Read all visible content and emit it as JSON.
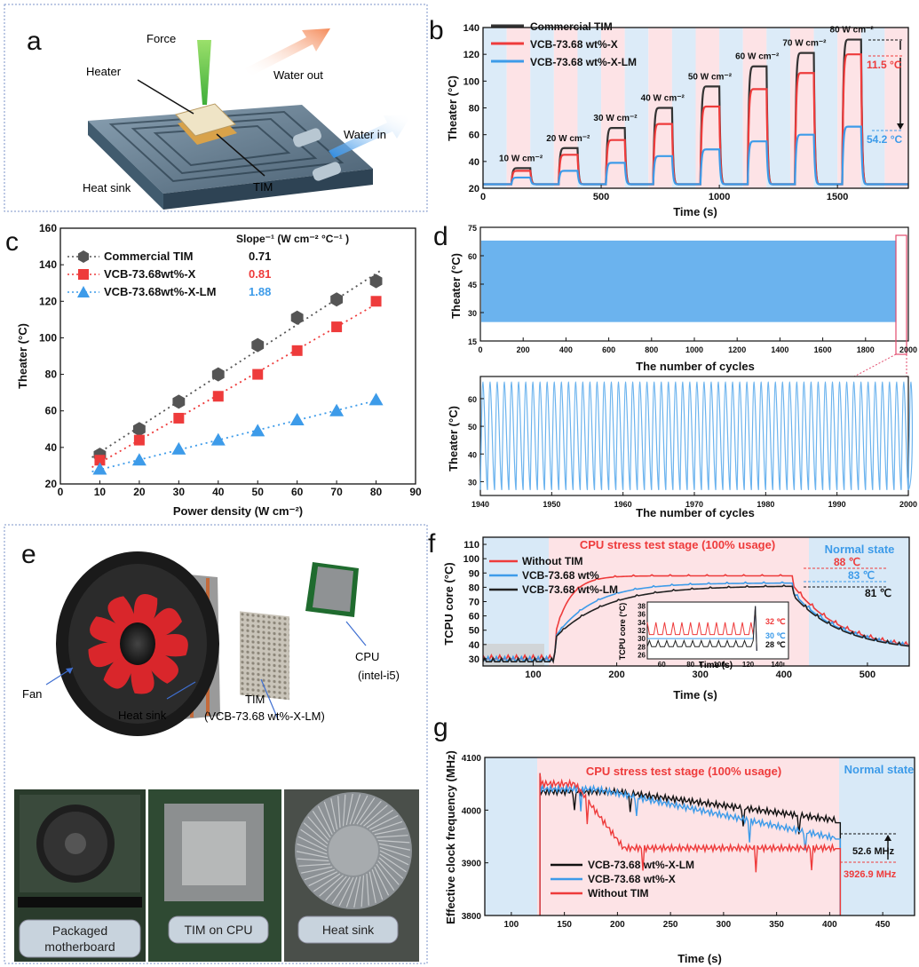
{
  "panels": {
    "a": {
      "letter": "a",
      "labels": {
        "force": "Force",
        "heater": "Heater",
        "water_out": "Water out",
        "water_in": "Water in",
        "heat_sink": "Heat sink",
        "tim": "TIM"
      }
    },
    "e": {
      "letter": "e",
      "labels": {
        "fan": "Fan",
        "heat_sink": "Heat sink",
        "tim": "TIM",
        "tim_sub": "(VCB-73.68 wt%-X-LM)",
        "cpu": "CPU",
        "cpu_sub": "(intel-i5)"
      },
      "photos": {
        "p1_line1": "Packaged",
        "p1_line2": "motherboard",
        "p2": "TIM on CPU",
        "p3": "Heat sink"
      }
    }
  },
  "chart_data": [
    {
      "panel": "b",
      "type": "line",
      "xlabel": "Time (s)",
      "ylabel": "Theater (°C)",
      "xlim": [
        0,
        1800
      ],
      "ylim": [
        20,
        140
      ],
      "xticks": [
        "0",
        "500",
        "1000",
        "1500"
      ],
      "yticks": [
        "20",
        "40",
        "60",
        "80",
        "100",
        "120",
        "140"
      ],
      "power_labels": [
        "10 W cm⁻²",
        "20 W cm⁻²",
        "30 W cm⁻²",
        "40 W cm⁻²",
        "50 W cm⁻²",
        "60 W cm⁻²",
        "70 W cm⁻²",
        "80 W cm⁻²"
      ],
      "annotations": [
        "11.5 °C",
        "54.2 °C"
      ],
      "series": [
        {
          "name": "Commercial TIM",
          "color": "#333333",
          "values": [
            35,
            50,
            65,
            80,
            96,
            111,
            121,
            131
          ]
        },
        {
          "name": "VCB-73.68 wt%-X",
          "color": "#ee3b3b",
          "values": [
            33,
            45,
            56,
            68,
            81,
            94,
            106,
            120
          ]
        },
        {
          "name": "VCB-73.68 wt%-X-LM",
          "color": "#3d9be9",
          "values": [
            28,
            33,
            39,
            44,
            49,
            55,
            60,
            66
          ]
        }
      ]
    },
    {
      "panel": "c",
      "type": "scatter",
      "xlabel": "Power density (W cm⁻²)",
      "ylabel": "Theater (°C)",
      "xlim": [
        0,
        90
      ],
      "ylim": [
        20,
        160
      ],
      "xticks": [
        "0",
        "10",
        "20",
        "30",
        "40",
        "50",
        "60",
        "70",
        "80",
        "90"
      ],
      "yticks": [
        "20",
        "40",
        "60",
        "80",
        "100",
        "120",
        "140",
        "160"
      ],
      "slope_header": "Slope⁻¹ (W cm⁻² °C⁻¹ )",
      "x": [
        10,
        20,
        30,
        40,
        50,
        60,
        70,
        80
      ],
      "series": [
        {
          "name": "Commercial TIM",
          "slope": "0.71",
          "color": "#555555",
          "values": [
            36,
            50,
            65,
            80,
            96,
            111,
            121,
            131
          ]
        },
        {
          "name": "VCB-73.68wt%-X",
          "slope": "0.81",
          "color": "#ee3b3b",
          "values": [
            33,
            44,
            56,
            68,
            80,
            93,
            106,
            120
          ]
        },
        {
          "name": "VCB-73.68wt%-X-LM",
          "slope": "1.88",
          "color": "#3d9be9",
          "values": [
            28,
            33,
            39,
            44,
            49,
            55,
            60,
            66
          ]
        }
      ]
    },
    {
      "panel": "d",
      "type": "area",
      "top": {
        "xlabel": "The number of cycles",
        "ylabel": "Theater (°C)",
        "xlim": [
          0,
          2000
        ],
        "ylim": [
          15,
          75
        ],
        "xticks": [
          "0",
          "200",
          "400",
          "600",
          "800",
          "1000",
          "1200",
          "1400",
          "1600",
          "1800",
          "2000"
        ],
        "yticks": [
          "15",
          "30",
          "45",
          "60",
          "75"
        ],
        "band": [
          25,
          68
        ],
        "color": "#6bb3ee"
      },
      "bottom": {
        "xlabel": "The number of cycles",
        "ylabel": "Theater (°C)",
        "xlim": [
          1940,
          2000
        ],
        "ylim": [
          25,
          68
        ],
        "xticks": [
          "1940",
          "1950",
          "1960",
          "1970",
          "1980",
          "1990",
          "2000"
        ],
        "yticks": [
          "30",
          "40",
          "50",
          "60"
        ],
        "cycle_min": 27,
        "cycle_max": 66,
        "color": "#6bb3ee"
      }
    },
    {
      "panel": "f",
      "type": "line",
      "xlabel": "Time (s)",
      "ylabel": "TCPU core (°C)",
      "xlim": [
        40,
        550
      ],
      "ylim": [
        25,
        115
      ],
      "xticks": [
        "100",
        "200",
        "300",
        "400",
        "500"
      ],
      "yticks": [
        "30",
        "40",
        "50",
        "60",
        "70",
        "80",
        "90",
        "100",
        "110"
      ],
      "stage_label": "CPU stress test stage (100% usage)",
      "normal_label": "Normal state",
      "stage_range": [
        125,
        410
      ],
      "annotations": [
        "88 ℃",
        "83 ℃",
        "81 ℃"
      ],
      "series": [
        {
          "name": "Without TIM",
          "color": "#ee3b3b",
          "plateau": 88
        },
        {
          "name": "VCB-73.68 wt%",
          "color": "#3d9be9",
          "plateau": 83
        },
        {
          "name": "VCB-73.68 wt%-LM",
          "color": "#222222",
          "plateau": 81
        }
      ],
      "inset": {
        "xlabel": "Time (s)",
        "ylabel": "TCPU core (°C)",
        "xticks": [
          "60",
          "80",
          "100",
          "120",
          "140"
        ],
        "yticks": [
          "26",
          "28",
          "30",
          "32",
          "34",
          "36",
          "38"
        ],
        "annotations": [
          "32 ℃",
          "30 ℃",
          "28 ℃"
        ]
      }
    },
    {
      "panel": "g",
      "type": "line",
      "xlabel": "Time (s)",
      "ylabel": "Effective clock frequency (MHz)",
      "xlim": [
        75,
        480
      ],
      "ylim": [
        3800,
        4100
      ],
      "xticks": [
        "100",
        "150",
        "200",
        "250",
        "300",
        "350",
        "400",
        "450"
      ],
      "yticks": [
        "3800",
        "3900",
        "4000",
        "4100"
      ],
      "stage_label": "CPU stress test stage (100% usage)",
      "normal_label": "Normal state",
      "stage_range": [
        127,
        410
      ],
      "annotations": [
        "52.6 MHz",
        "3926.9 MHz"
      ],
      "series": [
        {
          "name": "VCB-73.68 wt%-X-LM",
          "color": "#111111",
          "final": 3976
        },
        {
          "name": "VCB-73.68 wt%-X",
          "color": "#3d9be9",
          "final": 3945
        },
        {
          "name": "Without TIM",
          "color": "#ee3b3b",
          "final": 3927
        }
      ]
    }
  ]
}
